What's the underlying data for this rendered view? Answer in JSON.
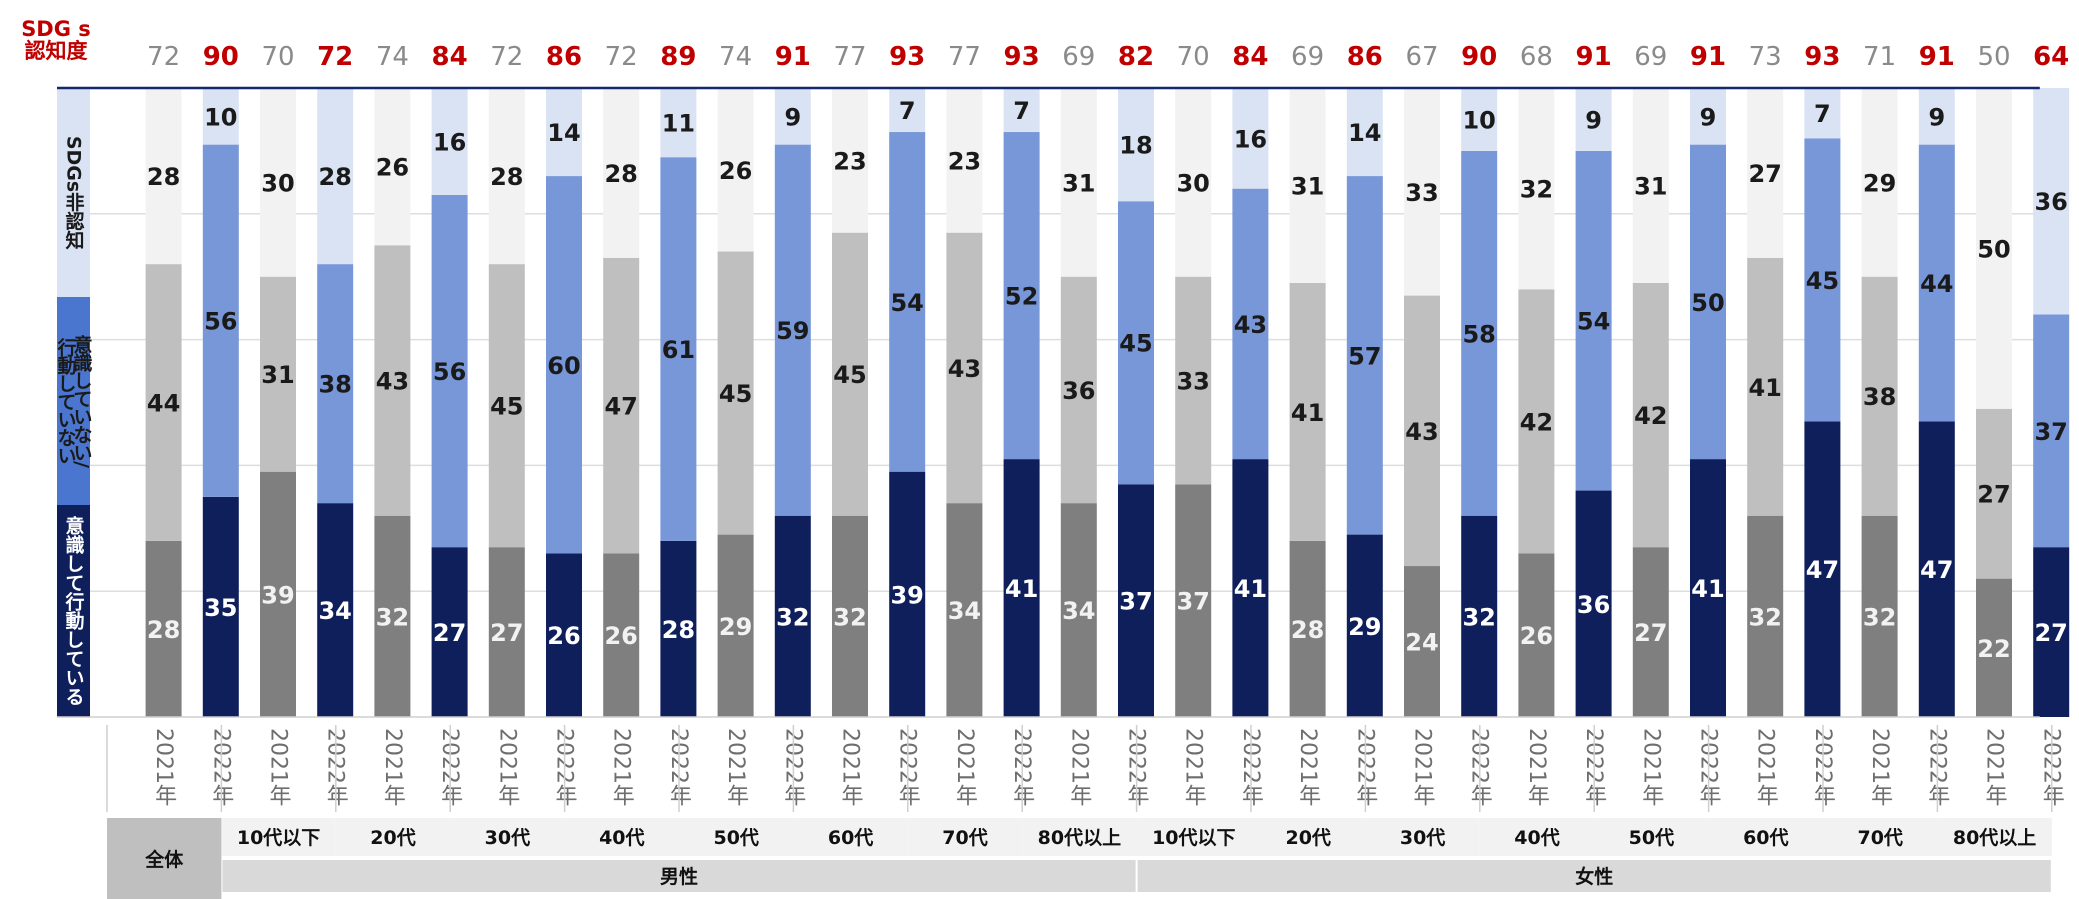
{
  "chart_data": {
    "type": "stacked-bar",
    "awareness_title": "SDG s\n認知度",
    "series": [
      {
        "name": "意識して行動している",
        "key": "act"
      },
      {
        "name": "意識していない/行動していない",
        "key": "noact"
      },
      {
        "name": "SDGs非認知",
        "key": "unaware"
      }
    ],
    "groups": [
      {
        "label": "全体",
        "gender": ""
      },
      {
        "label": "10代以下",
        "gender": "男性"
      },
      {
        "label": "20代",
        "gender": "男性"
      },
      {
        "label": "30代",
        "gender": "男性"
      },
      {
        "label": "40代",
        "gender": "男性"
      },
      {
        "label": "50代",
        "gender": "男性"
      },
      {
        "label": "60代",
        "gender": "男性"
      },
      {
        "label": "70代",
        "gender": "男性"
      },
      {
        "label": "80代以上",
        "gender": "男性"
      },
      {
        "label": "10代以下",
        "gender": "女性"
      },
      {
        "label": "20代",
        "gender": "女性"
      },
      {
        "label": "30代",
        "gender": "女性"
      },
      {
        "label": "40代",
        "gender": "女性"
      },
      {
        "label": "50代",
        "gender": "女性"
      },
      {
        "label": "60代",
        "gender": "女性"
      },
      {
        "label": "70代",
        "gender": "女性"
      },
      {
        "label": "80代以上",
        "gender": "女性"
      }
    ],
    "gender_labels": [
      "男性",
      "女性"
    ],
    "years": [
      "2021年",
      "2022年"
    ],
    "bars": [
      {
        "year": "2021年",
        "awareness": 72,
        "act": 28,
        "noact": 44,
        "unaware": 28
      },
      {
        "year": "2022年",
        "awareness": 90,
        "act": 35,
        "noact": 56,
        "unaware": 10
      },
      {
        "year": "2021年",
        "awareness": 70,
        "act": 39,
        "noact": 31,
        "unaware": 30
      },
      {
        "year": "2022年",
        "awareness": 72,
        "act": 34,
        "noact": 38,
        "unaware": 28
      },
      {
        "year": "2021年",
        "awareness": 74,
        "act": 32,
        "noact": 43,
        "unaware": 26
      },
      {
        "year": "2022年",
        "awareness": 84,
        "act": 27,
        "noact": 56,
        "unaware": 16
      },
      {
        "year": "2021年",
        "awareness": 72,
        "act": 27,
        "noact": 45,
        "unaware": 28
      },
      {
        "year": "2022年",
        "awareness": 86,
        "act": 26,
        "noact": 60,
        "unaware": 14
      },
      {
        "year": "2021年",
        "awareness": 72,
        "act": 26,
        "noact": 47,
        "unaware": 28
      },
      {
        "year": "2022年",
        "awareness": 89,
        "act": 28,
        "noact": 61,
        "unaware": 11
      },
      {
        "year": "2021年",
        "awareness": 74,
        "act": 29,
        "noact": 45,
        "unaware": 26
      },
      {
        "year": "2022年",
        "awareness": 91,
        "act": 32,
        "noact": 59,
        "unaware": 9
      },
      {
        "year": "2021年",
        "awareness": 77,
        "act": 32,
        "noact": 45,
        "unaware": 23
      },
      {
        "year": "2022年",
        "awareness": 93,
        "act": 39,
        "noact": 54,
        "unaware": 7
      },
      {
        "year": "2021年",
        "awareness": 77,
        "act": 34,
        "noact": 43,
        "unaware": 23
      },
      {
        "year": "2022年",
        "awareness": 93,
        "act": 41,
        "noact": 52,
        "unaware": 7
      },
      {
        "year": "2021年",
        "awareness": 69,
        "act": 34,
        "noact": 36,
        "unaware": 31
      },
      {
        "year": "2022年",
        "awareness": 82,
        "act": 37,
        "noact": 45,
        "unaware": 18
      },
      {
        "year": "2021年",
        "awareness": 70,
        "act": 37,
        "noact": 33,
        "unaware": 30
      },
      {
        "year": "2022年",
        "awareness": 84,
        "act": 41,
        "noact": 43,
        "unaware": 16
      },
      {
        "year": "2021年",
        "awareness": 69,
        "act": 28,
        "noact": 41,
        "unaware": 31
      },
      {
        "year": "2022年",
        "awareness": 86,
        "act": 29,
        "noact": 57,
        "unaware": 14
      },
      {
        "year": "2021年",
        "awareness": 67,
        "act": 24,
        "noact": 43,
        "unaware": 33
      },
      {
        "year": "2022年",
        "awareness": 90,
        "act": 32,
        "noact": 58,
        "unaware": 10
      },
      {
        "year": "2021年",
        "awareness": 68,
        "act": 26,
        "noact": 42,
        "unaware": 32
      },
      {
        "year": "2022年",
        "awareness": 91,
        "act": 36,
        "noact": 54,
        "unaware": 9
      },
      {
        "year": "2021年",
        "awareness": 69,
        "act": 27,
        "noact": 42,
        "unaware": 31
      },
      {
        "year": "2022年",
        "awareness": 91,
        "act": 41,
        "noact": 50,
        "unaware": 9
      },
      {
        "year": "2021年",
        "awareness": 73,
        "act": 32,
        "noact": 41,
        "unaware": 27
      },
      {
        "year": "2022年",
        "awareness": 93,
        "act": 47,
        "noact": 45,
        "unaware": 7
      },
      {
        "year": "2021年",
        "awareness": 71,
        "act": 32,
        "noact": 38,
        "unaware": 29
      },
      {
        "year": "2022年",
        "awareness": 91,
        "act": 47,
        "noact": 44,
        "unaware": 9
      },
      {
        "year": "2021年",
        "awareness": 50,
        "act": 22,
        "noact": 27,
        "unaware": 50
      },
      {
        "year": "2022年",
        "awareness": 64,
        "act": 27,
        "noact": 37,
        "unaware": 36
      }
    ],
    "colors": {
      "act_2021": "#7f7f7f",
      "noact_2021": "#bfbfbf",
      "unaware_2021": "#f2f2f2",
      "act_2022": "#0f1f5c",
      "noact_2022": "#7897d8",
      "unaware_2022": "#dae3f3",
      "awareness_2022": "#c00000",
      "awareness_2021": "#8a8a8a",
      "legend_act": "#0f1f5c",
      "legend_noact": "#4a76cf",
      "legend_unaware": "#dae3f3"
    },
    "ylim": [
      0,
      100
    ],
    "xlabel": "",
    "ylabel": ""
  }
}
